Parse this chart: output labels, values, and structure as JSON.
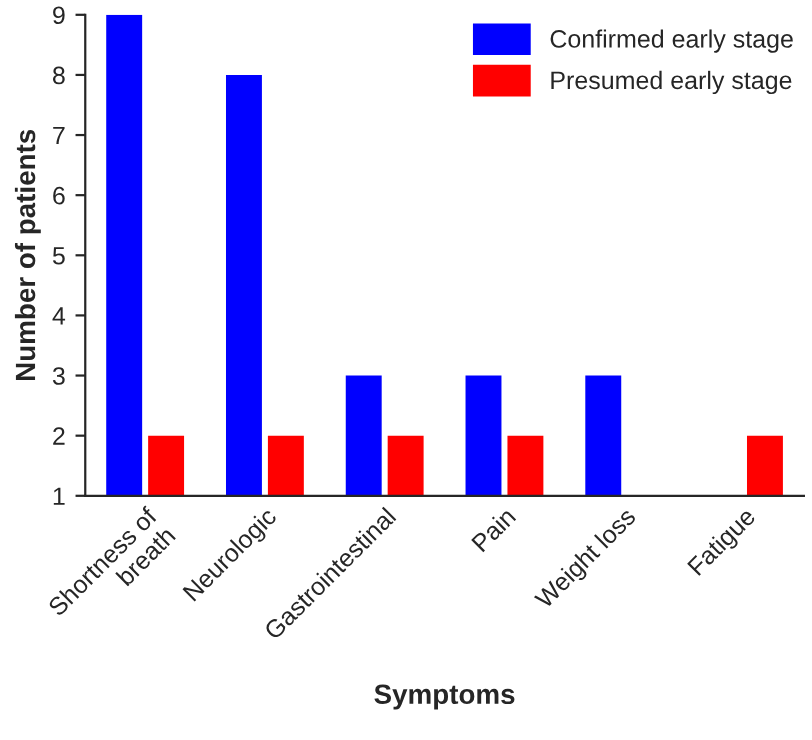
{
  "chart_data": {
    "type": "bar",
    "xlabel": "Symptoms",
    "ylabel": "Number of patients",
    "categories": [
      "Shortness of\nbreath",
      "Neurologic",
      "Gastrointestinal",
      "Pain",
      "Weight loss",
      "Fatigue"
    ],
    "series": [
      {
        "name": "Confirmed early stage",
        "color": "#0000ff",
        "values": [
          9,
          8,
          3,
          3,
          3,
          null
        ]
      },
      {
        "name": "Presumed early stage",
        "color": "#ff0000",
        "values": [
          2,
          2,
          2,
          2,
          null,
          2
        ]
      }
    ],
    "ylim": [
      1,
      9
    ],
    "yticks": [
      1,
      2,
      3,
      4,
      5,
      6,
      7,
      8,
      9
    ],
    "grid": false,
    "legend": "top right"
  }
}
